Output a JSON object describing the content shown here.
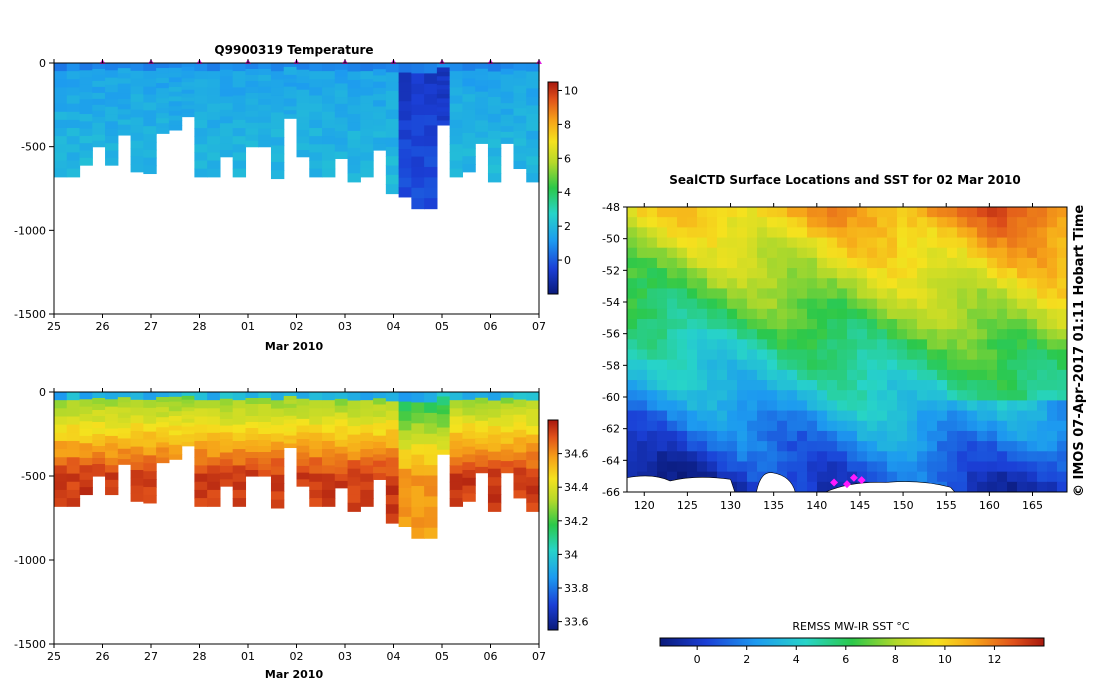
{
  "chart_data": [
    {
      "type": "heatmap",
      "title": "Q9900319  Temperature",
      "xlabel": "Mar 2010",
      "ylabel": "",
      "x_tick_labels": [
        "25",
        "26",
        "27",
        "28",
        "01",
        "02",
        "03",
        "04",
        "05",
        "06",
        "07"
      ],
      "y_tick_values": [
        0,
        -500,
        -1000,
        -1500
      ],
      "ylim": [
        -1500,
        0
      ],
      "colorbar": {
        "range": [
          -2,
          10.5
        ],
        "ticks": [
          0,
          2,
          4,
          6,
          8,
          10
        ]
      },
      "profile_depths_m": [
        680,
        680,
        610,
        500,
        610,
        430,
        650,
        660,
        420,
        400,
        320,
        680,
        680,
        560,
        680,
        500,
        500,
        690,
        330,
        560,
        680,
        680,
        570,
        710,
        680,
        520,
        780,
        800,
        870,
        870,
        370,
        680,
        650,
        480,
        710,
        480,
        630,
        710
      ],
      "surface_markers_at_day": [
        1,
        2,
        3,
        4,
        5,
        6,
        7,
        8,
        9,
        10
      ]
    },
    {
      "type": "heatmap",
      "title": "",
      "xlabel": "Mar 2010",
      "ylabel": "",
      "x_tick_labels": [
        "25",
        "26",
        "27",
        "28",
        "01",
        "02",
        "03",
        "04",
        "05",
        "06",
        "07"
      ],
      "y_tick_values": [
        0,
        -500,
        -1000,
        -1500
      ],
      "ylim": [
        -1500,
        0
      ],
      "colorbar": {
        "range": [
          33.55,
          34.8
        ],
        "ticks": [
          33.6,
          33.8,
          34,
          34.2,
          34.4,
          34.6
        ]
      },
      "profile_depths_m": [
        680,
        680,
        610,
        500,
        610,
        430,
        650,
        660,
        420,
        400,
        320,
        680,
        680,
        560,
        680,
        500,
        500,
        690,
        330,
        560,
        680,
        680,
        570,
        710,
        680,
        520,
        780,
        800,
        870,
        870,
        370,
        680,
        650,
        480,
        710,
        480,
        630,
        710
      ]
    },
    {
      "type": "heatmap",
      "title": "SealCTD Surface Locations and SST for 02 Mar 2010",
      "xlabel": "",
      "ylabel": "",
      "xlim": [
        118,
        169
      ],
      "ylim": [
        -66,
        -48
      ],
      "x_tick_values": [
        120,
        125,
        130,
        135,
        140,
        145,
        150,
        155,
        160,
        165
      ],
      "y_tick_values": [
        -48,
        -50,
        -52,
        -54,
        -56,
        -58,
        -60,
        -62,
        -64,
        -66
      ],
      "colorbar": {
        "label": "REMSS MW-IR SST °C",
        "range": [
          -1.5,
          14
        ],
        "ticks": [
          0,
          2,
          4,
          6,
          8,
          10,
          12
        ]
      },
      "seal_locations": [
        {
          "lon": 142.0,
          "lat": -65.4
        },
        {
          "lon": 143.5,
          "lat": -65.5
        },
        {
          "lon": 144.3,
          "lat": -65.1
        },
        {
          "lon": 145.2,
          "lat": -65.25
        }
      ],
      "side_label": "© IMOS 07-Apr-2017 01:11 Hobart Time"
    }
  ]
}
